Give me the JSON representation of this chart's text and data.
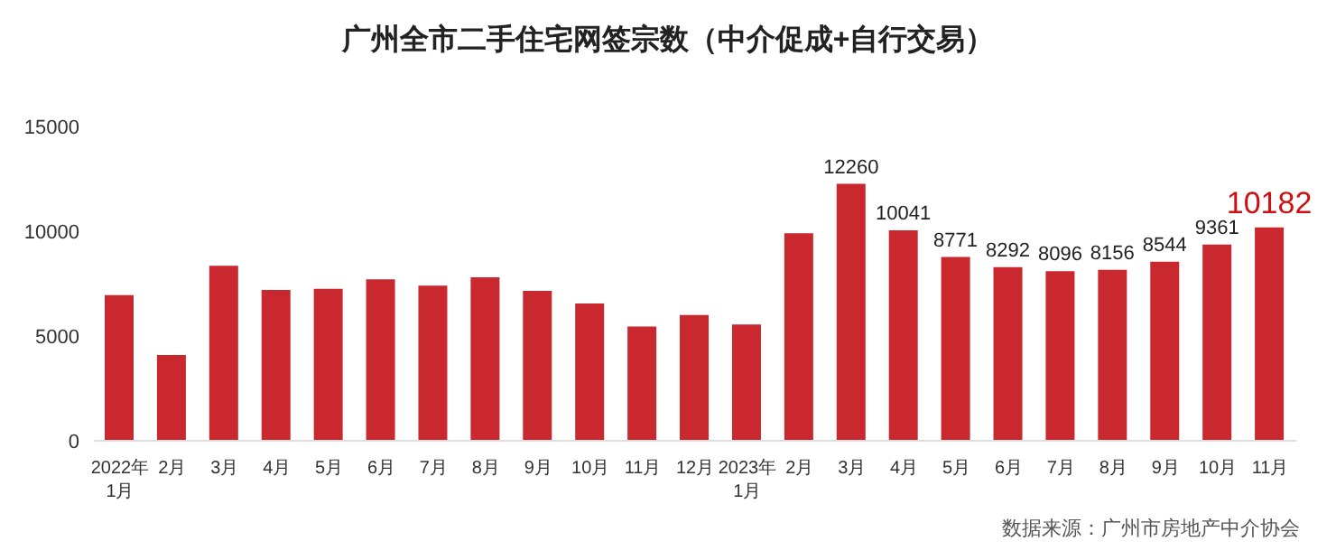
{
  "chart_data": {
    "type": "bar",
    "title": "广州全市二手住宅网签宗数（中介促成+自行交易）",
    "categories": [
      "2022年\n1月",
      "2月",
      "3月",
      "4月",
      "5月",
      "6月",
      "7月",
      "8月",
      "9月",
      "10月",
      "11月",
      "12月",
      "2023年\n1月",
      "2月",
      "3月",
      "4月",
      "5月",
      "6月",
      "7月",
      "8月",
      "9月",
      "10月",
      "11月"
    ],
    "values": [
      6950,
      4100,
      8350,
      7200,
      7250,
      7700,
      7400,
      7800,
      7150,
      6550,
      5450,
      6000,
      5550,
      9900,
      12260,
      10041,
      8771,
      8292,
      8096,
      8156,
      8544,
      9361,
      10182
    ],
    "value_labels": [
      null,
      null,
      null,
      null,
      null,
      null,
      null,
      null,
      null,
      null,
      null,
      null,
      null,
      null,
      "12260",
      "10041",
      "8771",
      "8292",
      "8096",
      "8156",
      "8544",
      "9361",
      "10182"
    ],
    "color": "#c8282e",
    "ylim": [
      0,
      15000
    ],
    "yticks": [
      0,
      5000,
      10000,
      15000
    ],
    "grid": false,
    "legend": false,
    "annotations": [
      "数据来源：广州市房地产中介协会"
    ]
  }
}
